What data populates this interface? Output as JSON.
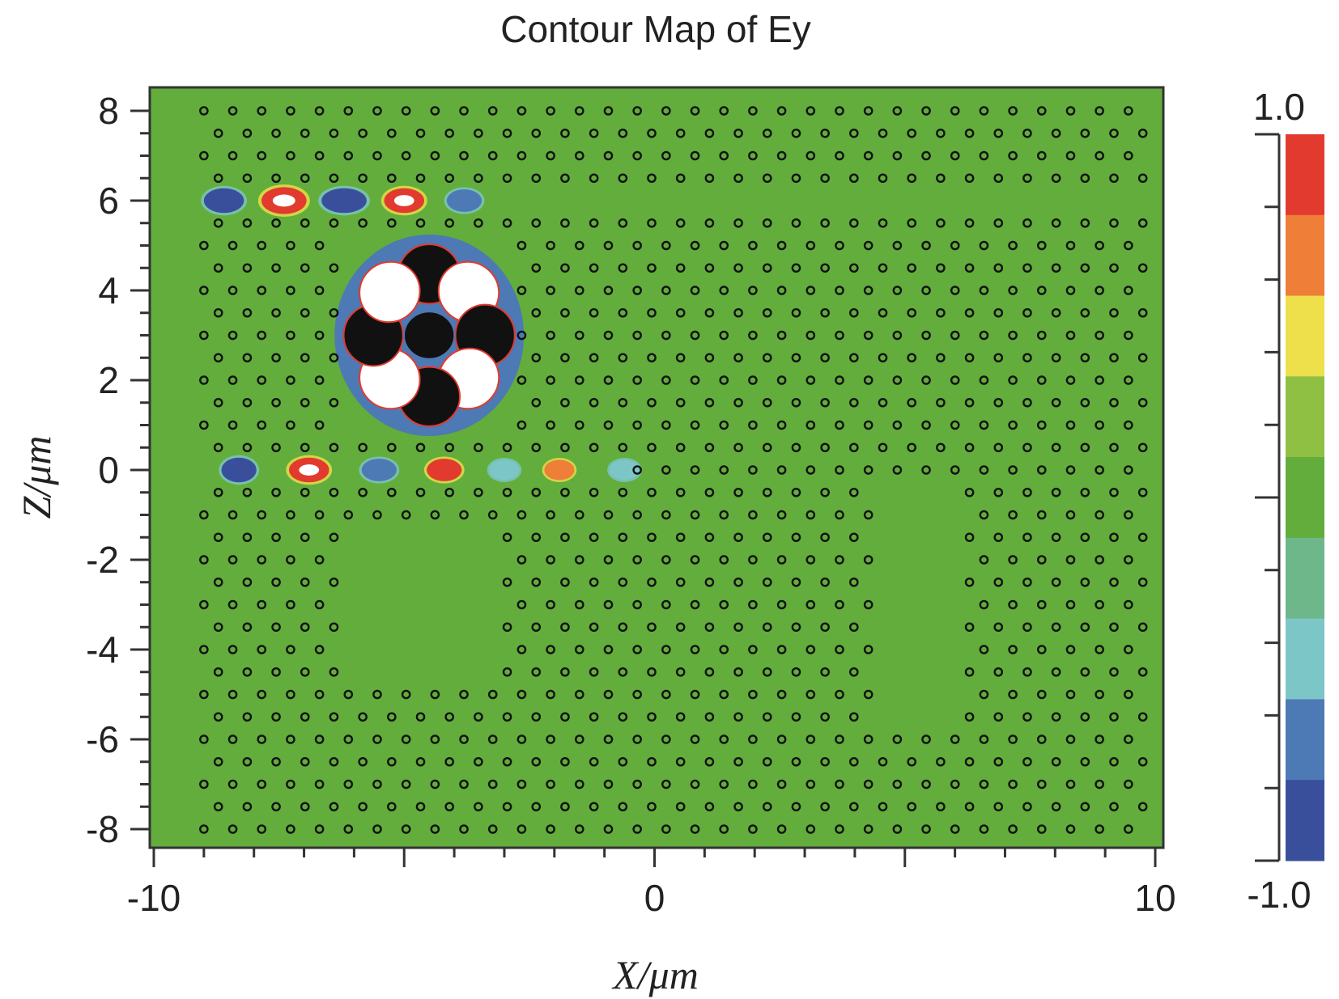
{
  "chart_data": {
    "type": "heatmap",
    "title": "Contour Map of Ey",
    "xlabel": "X/μm",
    "ylabel": "Z/μm",
    "xlim": [
      -10,
      10
    ],
    "ylim": [
      -8.3,
      8.5
    ],
    "x_ticks": [
      {
        "value": -10,
        "label": "-10"
      },
      {
        "value": 0,
        "label": "0"
      },
      {
        "value": 10,
        "label": "10"
      }
    ],
    "y_ticks": [
      {
        "value": 8,
        "label": "8"
      },
      {
        "value": 6,
        "label": "6"
      },
      {
        "value": 4,
        "label": "4"
      },
      {
        "value": 2,
        "label": "2"
      },
      {
        "value": 0,
        "label": "0"
      },
      {
        "value": -2,
        "label": "-2"
      },
      {
        "value": -4,
        "label": "-4"
      },
      {
        "value": -6,
        "label": "-6"
      },
      {
        "value": -8,
        "label": "-8"
      }
    ],
    "colorbar": {
      "max_label": "1.0",
      "min_label": "-1.0",
      "range": [
        -1.0,
        1.0
      ],
      "levels": [
        "#e23a2e",
        "#ee7e38",
        "#ede04a",
        "#8fc044",
        "#62ad3c",
        "#6eb78a",
        "#7dc6c7",
        "#4d79b5",
        "#3a4f9c"
      ]
    },
    "background_color": "#62ad3c",
    "lattice": {
      "row_spacing": 0.5,
      "col_spacing": 0.577,
      "marker": "hole",
      "missing_holes": [
        {
          "x": [
            -10,
            10
          ],
          "y": [
            6,
            6
          ]
        },
        {
          "x": [
            -10,
            -0.6
          ],
          "y": [
            0,
            0
          ]
        },
        {
          "x": [
            4.4,
            6.0
          ],
          "y": [
            -0.5,
            -5.5
          ]
        }
      ]
    },
    "field_features": [
      {
        "x": -8.6,
        "y": 6.0,
        "w": 0.8,
        "h": 0.55,
        "value": -0.85
      },
      {
        "x": -7.4,
        "y": 6.0,
        "w": 0.9,
        "h": 0.6,
        "value": 1.0
      },
      {
        "x": -6.2,
        "y": 6.0,
        "w": 0.9,
        "h": 0.55,
        "value": -0.85
      },
      {
        "x": -5.0,
        "y": 6.0,
        "w": 0.8,
        "h": 0.55,
        "value": 0.95
      },
      {
        "x": -3.8,
        "y": 6.0,
        "w": 0.7,
        "h": 0.5,
        "value": -0.7
      },
      {
        "x": -8.3,
        "y": 0.0,
        "w": 0.7,
        "h": 0.55,
        "value": -0.8
      },
      {
        "x": -6.9,
        "y": 0.0,
        "w": 0.8,
        "h": 0.55,
        "value": 0.95
      },
      {
        "x": -5.5,
        "y": 0.0,
        "w": 0.7,
        "h": 0.5,
        "value": -0.7
      },
      {
        "x": -4.2,
        "y": 0.0,
        "w": 0.7,
        "h": 0.5,
        "value": 0.85
      },
      {
        "x": -3.0,
        "y": 0.0,
        "w": 0.6,
        "h": 0.45,
        "value": -0.45
      },
      {
        "x": -1.9,
        "y": 0.0,
        "w": 0.6,
        "h": 0.45,
        "value": 0.6
      },
      {
        "x": -0.6,
        "y": 0.0,
        "w": 0.6,
        "h": 0.45,
        "value": -0.45
      },
      {
        "x": -4.5,
        "y": 3.0,
        "w": 3.6,
        "h": 4.4,
        "value": 1.0
      }
    ]
  }
}
